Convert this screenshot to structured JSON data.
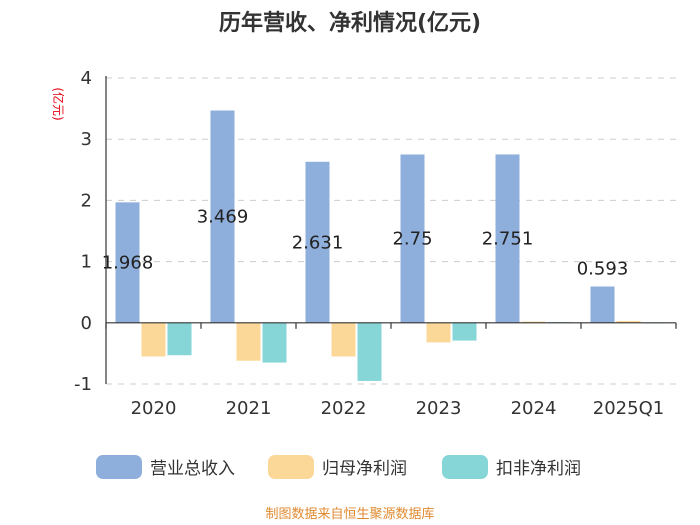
{
  "title": "历年营收、净利情况(亿元)",
  "unit_label": "(亿元)",
  "source": "制图数据来自恒生聚源数据库",
  "colors": {
    "revenue": "#8eaedb",
    "net_profit": "#fcd898",
    "deducted_net_profit": "#86d6d8"
  },
  "chart_data": {
    "type": "bar",
    "title": "历年营收、净利情况(亿元)",
    "ylabel": "(亿元)",
    "ylim": [
      -1,
      4
    ],
    "yticks": [
      "-1",
      "0",
      "1",
      "2",
      "3",
      "4"
    ],
    "grid": true,
    "legend_position": "bottom",
    "categories": [
      "2020",
      "2021",
      "2022",
      "2023",
      "2024",
      "2025Q1"
    ],
    "series": [
      {
        "name": "营业总收入",
        "values": [
          1.968,
          3.469,
          2.631,
          2.75,
          2.751,
          0.593
        ],
        "labels": [
          "1.968",
          "3.469",
          "2.631",
          "2.75",
          "2.751",
          "0.593"
        ]
      },
      {
        "name": "归母净利润",
        "values": [
          -0.55,
          -0.62,
          -0.55,
          -0.32,
          0.02,
          0.03
        ]
      },
      {
        "name": "扣非净利润",
        "values": [
          -0.53,
          -0.65,
          -0.95,
          -0.29,
          0.01,
          0.0
        ]
      }
    ]
  }
}
